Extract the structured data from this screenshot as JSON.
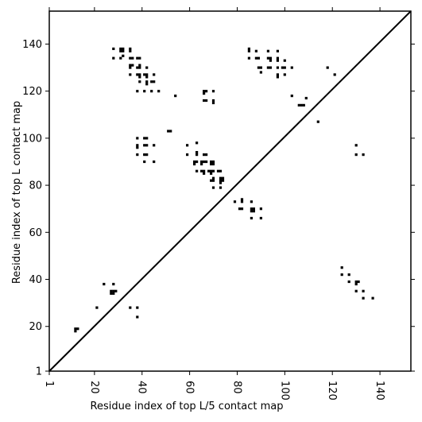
{
  "chart_data": {
    "type": "scatter",
    "xlabel": "Residue index of top L/5 contact map",
    "ylabel": "Residue index of top L contact map",
    "xlim": [
      1,
      153
    ],
    "ylim": [
      1,
      154
    ],
    "xticks": [
      1,
      20,
      40,
      60,
      80,
      100,
      120,
      140
    ],
    "xtick_labels": [
      "1",
      "20",
      "40",
      "60",
      "80",
      "100",
      "120",
      "140"
    ],
    "yticks": [
      1,
      20,
      40,
      60,
      80,
      100,
      120,
      140
    ],
    "ytick_labels": [
      "1",
      "20",
      "40",
      "60",
      "80",
      "100",
      "120",
      "140"
    ],
    "xtick_rotation": -90,
    "diagonal": true,
    "marker": "square",
    "marker_color": "#000000",
    "grid": false,
    "series": [
      {
        "points_upper_left": [
          [
            28,
            138
          ],
          [
            28,
            134
          ],
          [
            31,
            138
          ],
          [
            31,
            137
          ],
          [
            32,
            138
          ],
          [
            32,
            137
          ],
          [
            32,
            135
          ],
          [
            31,
            134
          ],
          [
            35,
            138
          ],
          [
            35,
            137
          ],
          [
            35,
            134
          ],
          [
            36,
            134
          ],
          [
            38,
            134
          ],
          [
            39,
            134
          ],
          [
            35,
            131
          ],
          [
            36,
            131
          ],
          [
            35,
            130
          ],
          [
            38,
            130
          ],
          [
            39,
            130
          ],
          [
            39,
            131
          ],
          [
            42,
            130
          ],
          [
            35,
            127
          ],
          [
            38,
            127
          ],
          [
            39,
            127
          ],
          [
            41,
            127
          ],
          [
            42,
            127
          ],
          [
            42,
            126
          ],
          [
            39,
            126
          ],
          [
            45,
            127
          ],
          [
            39,
            124
          ],
          [
            42,
            124
          ],
          [
            42,
            123
          ],
          [
            44,
            124
          ],
          [
            45,
            124
          ],
          [
            38,
            120
          ],
          [
            41,
            120
          ],
          [
            44,
            120
          ],
          [
            47,
            120
          ],
          [
            54,
            118
          ],
          [
            66,
            120
          ],
          [
            67,
            120
          ],
          [
            66,
            119
          ],
          [
            70,
            120
          ],
          [
            66,
            116
          ],
          [
            67,
            116
          ],
          [
            70,
            116
          ],
          [
            70,
            115
          ],
          [
            51,
            103
          ],
          [
            52,
            103
          ],
          [
            38,
            100
          ],
          [
            41,
            100
          ],
          [
            42,
            100
          ],
          [
            38,
            97
          ],
          [
            38,
            96
          ],
          [
            41,
            97
          ],
          [
            42,
            97
          ],
          [
            45,
            97
          ],
          [
            38,
            93
          ],
          [
            41,
            93
          ],
          [
            42,
            93
          ],
          [
            41,
            90
          ],
          [
            45,
            90
          ],
          [
            59,
            97
          ],
          [
            63,
            98
          ],
          [
            59,
            93
          ],
          [
            63,
            93
          ],
          [
            63,
            94
          ],
          [
            66,
            93
          ],
          [
            67,
            93
          ],
          [
            62,
            90
          ],
          [
            63,
            90
          ],
          [
            62,
            89
          ],
          [
            65,
            90
          ],
          [
            66,
            90
          ],
          [
            65,
            89
          ],
          [
            67,
            90
          ],
          [
            69,
            90
          ],
          [
            70,
            90
          ],
          [
            69,
            89
          ],
          [
            70,
            89
          ],
          [
            63,
            86
          ],
          [
            65,
            86
          ],
          [
            66,
            86
          ],
          [
            66,
            85
          ],
          [
            68,
            86
          ],
          [
            69,
            86
          ],
          [
            70,
            86
          ],
          [
            69,
            85
          ],
          [
            72,
            86
          ],
          [
            73,
            86
          ],
          [
            73,
            83
          ],
          [
            74,
            83
          ],
          [
            73,
            82
          ],
          [
            74,
            82
          ],
          [
            69,
            82
          ],
          [
            70,
            82
          ],
          [
            70,
            83
          ],
          [
            70,
            79
          ],
          [
            73,
            79
          ],
          [
            73,
            81
          ],
          [
            85,
            138
          ],
          [
            85,
            137
          ],
          [
            88,
            137
          ],
          [
            88,
            134
          ],
          [
            89,
            134
          ],
          [
            85,
            134
          ],
          [
            93,
            137
          ],
          [
            97,
            137
          ],
          [
            93,
            134
          ],
          [
            94,
            134
          ],
          [
            94,
            133
          ],
          [
            97,
            134
          ],
          [
            97,
            133
          ],
          [
            100,
            133
          ],
          [
            89,
            130
          ],
          [
            90,
            130
          ],
          [
            93,
            130
          ],
          [
            94,
            130
          ],
          [
            97,
            130
          ],
          [
            99,
            130
          ],
          [
            100,
            130
          ],
          [
            103,
            130
          ],
          [
            90,
            128
          ],
          [
            97,
            127
          ],
          [
            97,
            126
          ],
          [
            100,
            127
          ],
          [
            118,
            130
          ],
          [
            121,
            127
          ],
          [
            103,
            118
          ],
          [
            106,
            114
          ],
          [
            107,
            114
          ],
          [
            108,
            114
          ],
          [
            109,
            117
          ],
          [
            114,
            107
          ],
          [
            79,
            73
          ],
          [
            82,
            74
          ],
          [
            82,
            73
          ],
          [
            81,
            70
          ],
          [
            82,
            70
          ],
          [
            86,
            73
          ],
          [
            86,
            70
          ],
          [
            87,
            70
          ],
          [
            86,
            69
          ],
          [
            87,
            69
          ],
          [
            90,
            70
          ],
          [
            86,
            66
          ],
          [
            90,
            66
          ]
        ]
      },
      {
        "points_lower_right": [
          [
            12,
            19
          ],
          [
            13,
            19
          ],
          [
            12,
            18
          ],
          [
            21,
            28
          ],
          [
            24,
            38
          ],
          [
            28,
            38
          ],
          [
            27,
            35
          ],
          [
            28,
            35
          ],
          [
            29,
            35
          ],
          [
            27,
            34
          ],
          [
            28,
            34
          ],
          [
            35,
            28
          ],
          [
            38,
            28
          ],
          [
            38,
            24
          ],
          [
            124,
            45
          ],
          [
            124,
            42
          ],
          [
            127,
            42
          ],
          [
            127,
            39
          ],
          [
            130,
            39
          ],
          [
            131,
            39
          ],
          [
            130,
            38
          ],
          [
            130,
            35
          ],
          [
            133,
            35
          ],
          [
            133,
            32
          ],
          [
            137,
            32
          ]
        ]
      },
      {
        "points_lower_right_2": [
          [
            130,
            97
          ],
          [
            130,
            93
          ],
          [
            133,
            93
          ]
        ]
      }
    ]
  }
}
